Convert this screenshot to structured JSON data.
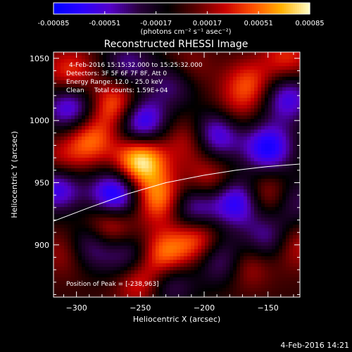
{
  "chart_data": {
    "type": "heatmap",
    "title": "Reconstructed RHESSI Image",
    "xlabel": "Heliocentric X (arcsec)",
    "ylabel": "Heliocentric Y (arcsec)",
    "xlim": [
      -318,
      -125
    ],
    "ylim": [
      858,
      1055
    ],
    "x_ticks": [
      -300,
      -250,
      -200,
      -150
    ],
    "y_ticks": [
      900,
      950,
      1000,
      1050
    ],
    "annotation_lines": [
      "4-Feb-2016 15:15:32.000 to 15:25:32.000",
      "Detectors: 3F 5F 6F 7F 8F, Att 0",
      "Energy Range: 12.0 - 25.0 keV",
      "Clean     Total counts: 1.59E+04"
    ],
    "peak_label": "Position of Peak = [-238,963]",
    "peak": [
      -238,
      963
    ],
    "colorbar": {
      "range": [
        -0.00085,
        0.00085
      ],
      "tick_labels": [
        "-0.00085",
        "-0.00051",
        "-0.00017",
        "0.00017",
        "0.00051",
        "0.00085"
      ],
      "tick_values": [
        -0.00085,
        -0.00051,
        -0.00017,
        0.00017,
        0.00051,
        0.00085
      ],
      "units_label": "(photons cm⁻² s⁻¹ asec⁻²)",
      "colors": [
        "#0000ff",
        "#2b00ff",
        "#5500c8",
        "#2a003c",
        "#000000",
        "#5a0000",
        "#c80000",
        "#ff5000",
        "#ffb000",
        "#ffffc8"
      ]
    },
    "limb_curve": {
      "x": [
        -318,
        -290,
        -260,
        -230,
        -200,
        -175,
        -150,
        -125
      ],
      "y": [
        919,
        930,
        941,
        950,
        956,
        960,
        963,
        965
      ]
    },
    "blobs": [
      {
        "x": -250,
        "y": 967,
        "amplitude": 0.00085
      },
      {
        "x": -268,
        "y": 1012,
        "amplitude": 0.00062
      },
      {
        "x": -290,
        "y": 985,
        "amplitude": 0.00052
      },
      {
        "x": -313,
        "y": 962,
        "amplitude": 0.00045
      },
      {
        "x": -235,
        "y": 937,
        "amplitude": 0.0006
      },
      {
        "x": -275,
        "y": 915,
        "amplitude": 0.00055
      },
      {
        "x": -232,
        "y": 892,
        "amplitude": 0.00058
      },
      {
        "x": -205,
        "y": 905,
        "amplitude": 0.0005
      },
      {
        "x": -250,
        "y": 872,
        "amplitude": 0.0005
      },
      {
        "x": -168,
        "y": 885,
        "amplitude": 0.0004
      },
      {
        "x": -150,
        "y": 940,
        "amplitude": 0.00042
      },
      {
        "x": -165,
        "y": 1028,
        "amplitude": 0.00045
      },
      {
        "x": -195,
        "y": 950,
        "amplitude": 0.0004
      },
      {
        "x": -210,
        "y": 985,
        "amplitude": 0.00035
      },
      {
        "x": -305,
        "y": 1038,
        "amplitude": 0.00042
      },
      {
        "x": -215,
        "y": 1040,
        "amplitude": 0.0004
      },
      {
        "x": -130,
        "y": 900,
        "amplitude": 0.00035
      },
      {
        "x": -305,
        "y": 895,
        "amplitude": 0.00035
      },
      {
        "x": -135,
        "y": 1050,
        "amplitude": 0.00038
      },
      {
        "x": -180,
        "y": 1002,
        "amplitude": 0.0003
      },
      {
        "x": -250,
        "y": 1000,
        "amplitude": -0.0008
      },
      {
        "x": -305,
        "y": 1010,
        "amplitude": -0.00065
      },
      {
        "x": -315,
        "y": 948,
        "amplitude": -0.0008
      },
      {
        "x": -270,
        "y": 940,
        "amplitude": -0.00085
      },
      {
        "x": -290,
        "y": 900,
        "amplitude": -0.0006
      },
      {
        "x": -222,
        "y": 1032,
        "amplitude": -0.00055
      },
      {
        "x": -190,
        "y": 990,
        "amplitude": -0.0008
      },
      {
        "x": -175,
        "y": 935,
        "amplitude": -0.00075
      },
      {
        "x": -208,
        "y": 930,
        "amplitude": -0.0006
      },
      {
        "x": -150,
        "y": 978,
        "amplitude": -0.00075
      },
      {
        "x": -135,
        "y": 1018,
        "amplitude": -0.0006
      },
      {
        "x": -185,
        "y": 888,
        "amplitude": -0.00055
      },
      {
        "x": -258,
        "y": 890,
        "amplitude": -0.0005
      },
      {
        "x": -150,
        "y": 905,
        "amplitude": -0.0005
      },
      {
        "x": -260,
        "y": 1045,
        "amplitude": -0.0004
      },
      {
        "x": -130,
        "y": 935,
        "amplitude": -0.0004
      },
      {
        "x": -228,
        "y": 870,
        "amplitude": -0.00045
      }
    ]
  },
  "footer": {
    "timestamp": "4-Feb-2016 14:21"
  }
}
